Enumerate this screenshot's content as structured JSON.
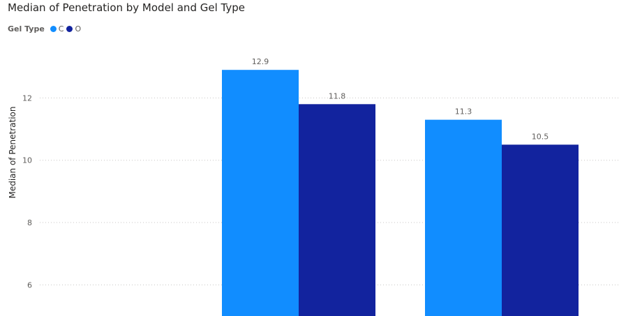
{
  "chart_data": {
    "type": "bar",
    "title": "Median of Penetration by Model and Gel Type",
    "ylabel": "Median of Penetration",
    "xlabel": "",
    "legend": {
      "title": "Gel Type",
      "position": "top-left"
    },
    "categories": [
      "",
      "",
      ""
    ],
    "series": [
      {
        "name": "C",
        "color": "#118DFF",
        "values": [
          null,
          12.9,
          11.3
        ]
      },
      {
        "name": "O",
        "color": "#12239E",
        "values": [
          null,
          11.8,
          10.5
        ]
      }
    ],
    "yticks": [
      6,
      8,
      10,
      12
    ],
    "ylim": [
      5,
      13.8
    ],
    "grid": true
  }
}
